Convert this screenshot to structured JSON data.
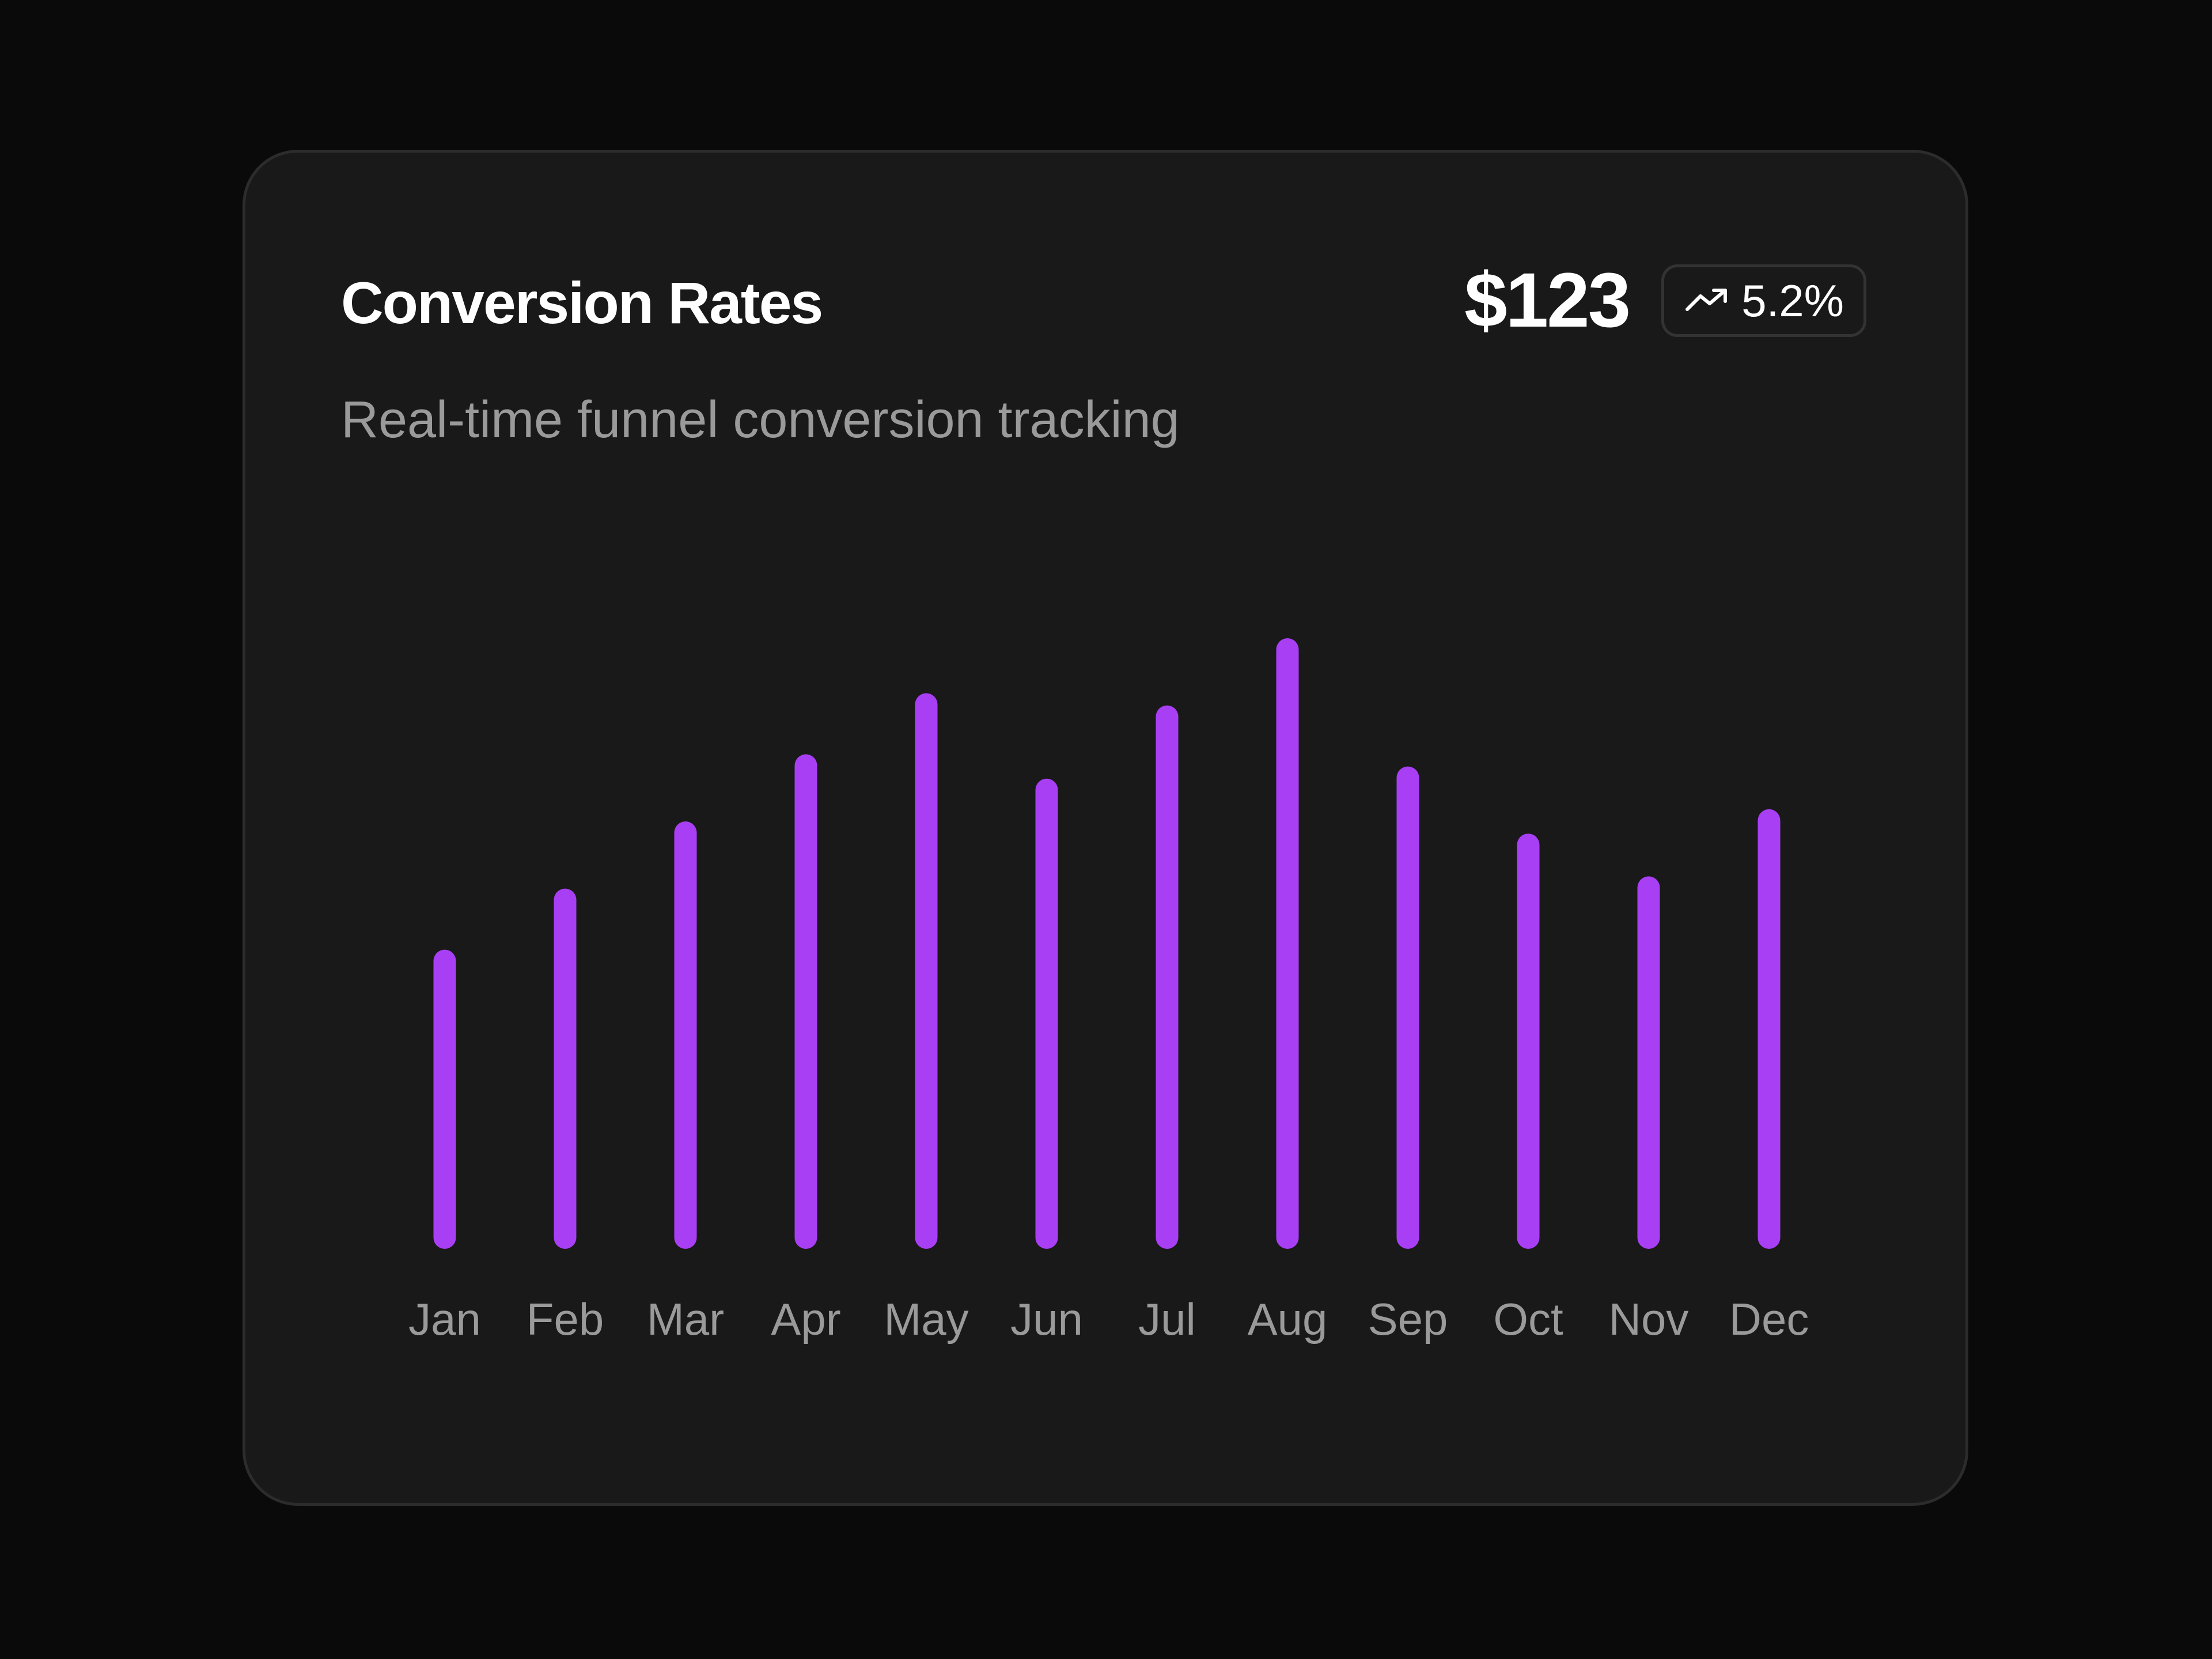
{
  "card": {
    "title": "Conversion Rates",
    "subtitle": "Real-time funnel conversion tracking",
    "metric_value": "$123",
    "trend": {
      "icon": "trend-up-icon",
      "text": "5.2%"
    }
  },
  "colors": {
    "page_background": "#0a0a0a",
    "card_background": "#191919",
    "bar": "#a93ff5",
    "text_primary": "#ffffff",
    "text_secondary": "#9a9a9a"
  },
  "chart_data": {
    "type": "bar",
    "categories": [
      "Jan",
      "Feb",
      "Mar",
      "Apr",
      "May",
      "Jun",
      "Jul",
      "Aug",
      "Sep",
      "Oct",
      "Nov",
      "Dec"
    ],
    "values": [
      49,
      59,
      70,
      81,
      91,
      77,
      89,
      100,
      79,
      68,
      61,
      72
    ],
    "ylim": [
      0,
      100
    ],
    "grid": false,
    "legend": "none"
  }
}
